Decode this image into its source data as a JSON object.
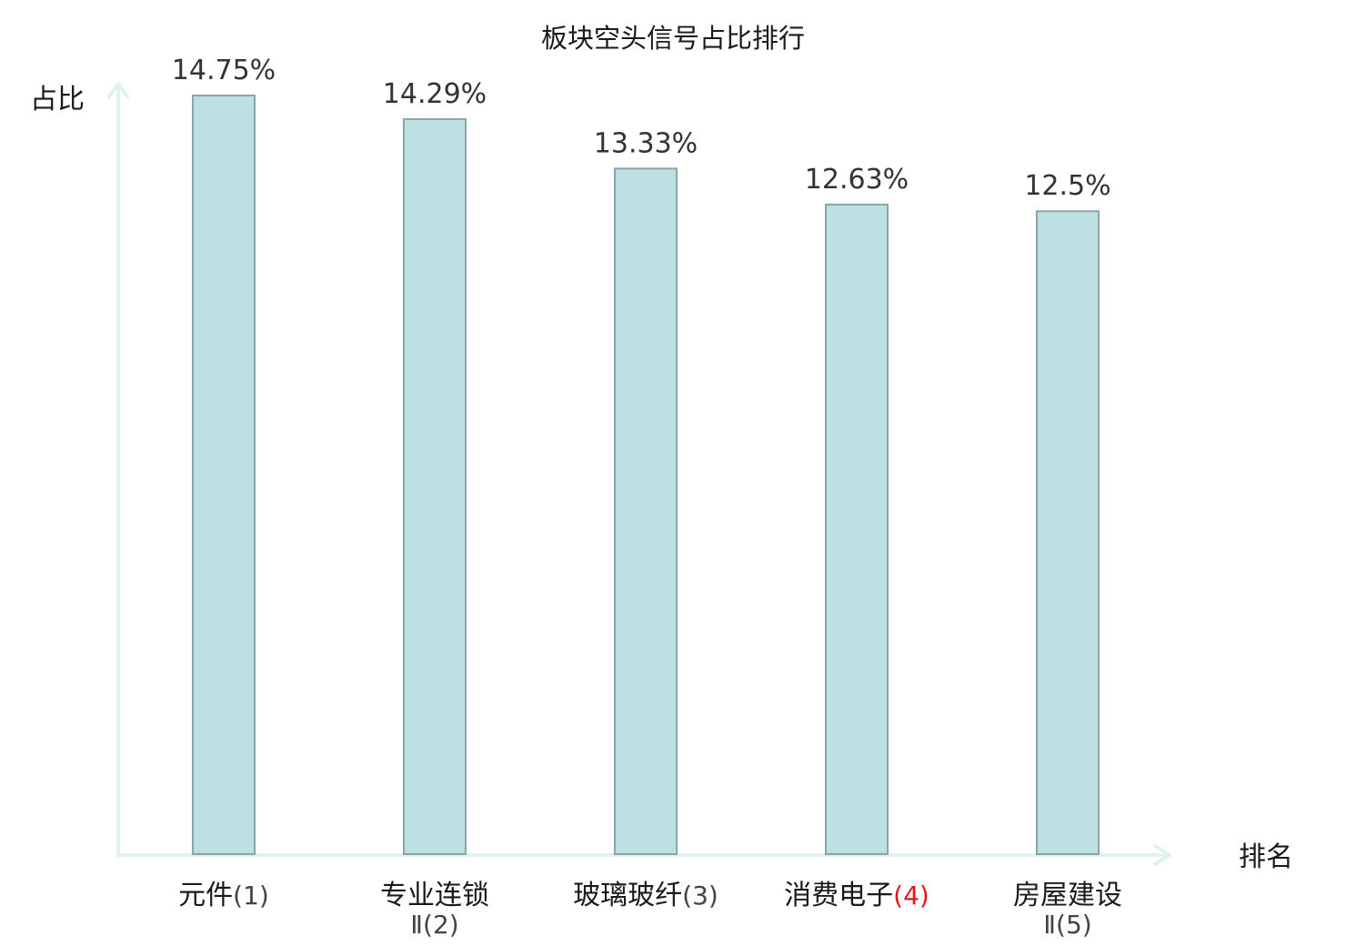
{
  "chart_data": {
    "type": "bar",
    "title": "板块空头信号占比排行",
    "ylabel": "占比",
    "xlabel": "排名",
    "grid": false,
    "legend": "none",
    "ylim": [
      0,
      14.75
    ],
    "categories": [
      {
        "name": "元件",
        "name_line2": "",
        "rank": "(1)",
        "highlight": false
      },
      {
        "name": "专业连锁",
        "name_line2": "Ⅱ",
        "rank": "(2)",
        "highlight": false
      },
      {
        "name": "玻璃玻纤",
        "name_line2": "",
        "rank": "(3)",
        "highlight": false
      },
      {
        "name": "消费电子",
        "name_line2": "",
        "rank": "(4)",
        "highlight": true
      },
      {
        "name": "房屋建设",
        "name_line2": "Ⅱ",
        "rank": "(5)",
        "highlight": false
      }
    ],
    "values": [
      14.75,
      14.29,
      13.33,
      12.63,
      12.5
    ],
    "value_labels": [
      "14.75%",
      "14.29%",
      "13.33%",
      "12.63%",
      "12.5%"
    ],
    "colors": {
      "bar_fill": "#bde0e2",
      "bar_stroke": "#8aa6a8",
      "axis": "#e0f2ef",
      "highlight": "#e0191e"
    }
  }
}
